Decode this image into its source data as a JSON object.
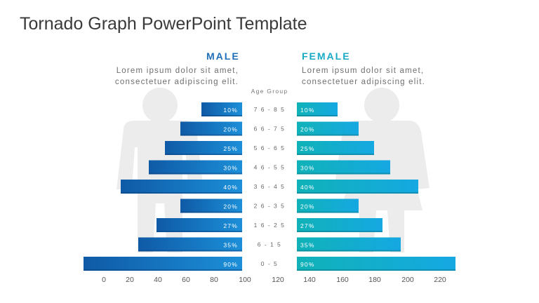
{
  "title": "Tornado Graph PowerPoint Template",
  "male": {
    "heading": "MALE",
    "description_line1": "Lorem ipsum dolor sit amet,",
    "description_line2": "consectetuer adipiscing elit."
  },
  "female": {
    "heading": "FEMALE",
    "description_line1": "Lorem ipsum dolor sit amet,",
    "description_line2": "consectetuer adipiscing elit."
  },
  "colors": {
    "male_bar": "#1565b0",
    "male_bar_light": "#1a8ad6",
    "female_bar": "#11b3bd",
    "female_bar_light": "#12a6e0",
    "silhouette": "#ececec",
    "axis_text": "#555555"
  },
  "icons": [
    "male-silhouette-icon",
    "female-silhouette-icon"
  ],
  "chart_data": {
    "type": "bar",
    "orientation": "horizontal-tornado",
    "category_label": "Age Group",
    "categories": [
      "76-85",
      "66-75",
      "56-65",
      "46-55",
      "36-45",
      "26-35",
      "16-25",
      "6-15",
      "0-5"
    ],
    "series": [
      {
        "name": "MALE",
        "labels": [
          "10%",
          "20%",
          "25%",
          "30%",
          "40%",
          "20%",
          "27%",
          "35%",
          "90%"
        ],
        "values": [
          10,
          20,
          25,
          30,
          40,
          20,
          27,
          35,
          90
        ]
      },
      {
        "name": "FEMALE",
        "labels": [
          "10%",
          "20%",
          "25%",
          "30%",
          "40%",
          "20%",
          "27%",
          "35%",
          "90%"
        ],
        "values": [
          10,
          20,
          25,
          30,
          40,
          20,
          27,
          35,
          90
        ]
      }
    ],
    "x_ticks": [
      "0",
      "20",
      "40",
      "60",
      "80",
      "100",
      "120",
      "140",
      "160",
      "180",
      "200",
      "220"
    ],
    "grid": false,
    "legend": "none"
  }
}
